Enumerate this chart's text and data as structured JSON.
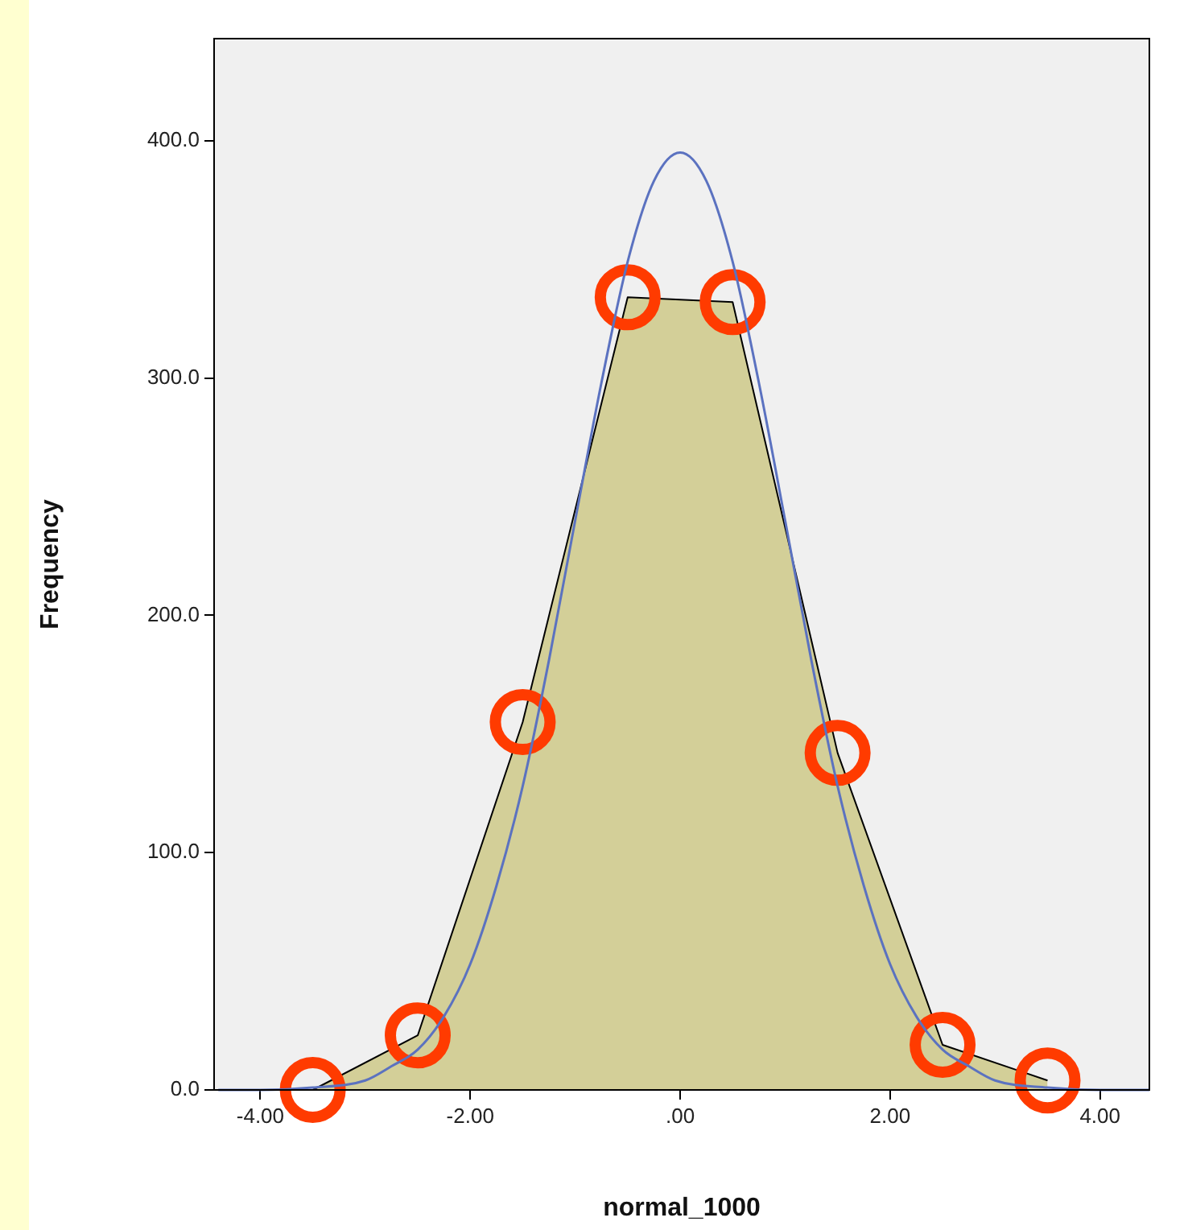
{
  "chart_data": {
    "type": "area",
    "xlabel": "normal_1000",
    "ylabel": "Frequency",
    "xlim": [
      -4.44,
      4.47
    ],
    "ylim": [
      0,
      443
    ],
    "xticks": [
      {
        "value": -4,
        "label": "-4.00"
      },
      {
        "value": -2,
        "label": "-2.00"
      },
      {
        "value": 0,
        "label": ".00"
      },
      {
        "value": 2,
        "label": "2.00"
      },
      {
        "value": 4,
        "label": "4.00"
      }
    ],
    "yticks": [
      {
        "value": 0,
        "label": "0.0"
      },
      {
        "value": 100,
        "label": "100.0"
      },
      {
        "value": 200,
        "label": "200.0"
      },
      {
        "value": 300,
        "label": "300.0"
      },
      {
        "value": 400,
        "label": "400.0"
      }
    ],
    "grid": false,
    "legend": false,
    "series": [
      {
        "marker": "circle",
        "color": "#d3cf98",
        "x": [
          -3.5,
          -2.5,
          -1.5,
          -0.5,
          0.5,
          1.5,
          2.5,
          3.5
        ],
        "values": [
          0,
          23,
          155,
          334,
          332,
          142,
          19,
          4
        ]
      },
      {
        "type": "line",
        "marker": "none",
        "color": "#5b72c0",
        "x": [
          -4.4,
          -4,
          -3.5,
          -3,
          -2.75,
          -2.5,
          -2.25,
          -2,
          -1.75,
          -1.5,
          -1.25,
          -1,
          -0.75,
          -0.5,
          -0.25,
          0,
          0.25,
          0.5,
          0.75,
          1,
          1.25,
          1.5,
          1.75,
          2,
          2.25,
          2.5,
          2.75,
          3,
          3.5,
          4,
          4.47
        ],
        "values": [
          0,
          0,
          1,
          4,
          10,
          17,
          31,
          53,
          86,
          128,
          181,
          240,
          298,
          349,
          383,
          395,
          383,
          349,
          298,
          240,
          181,
          128,
          86,
          53,
          31,
          17,
          10,
          4,
          1,
          0,
          0
        ]
      }
    ]
  }
}
